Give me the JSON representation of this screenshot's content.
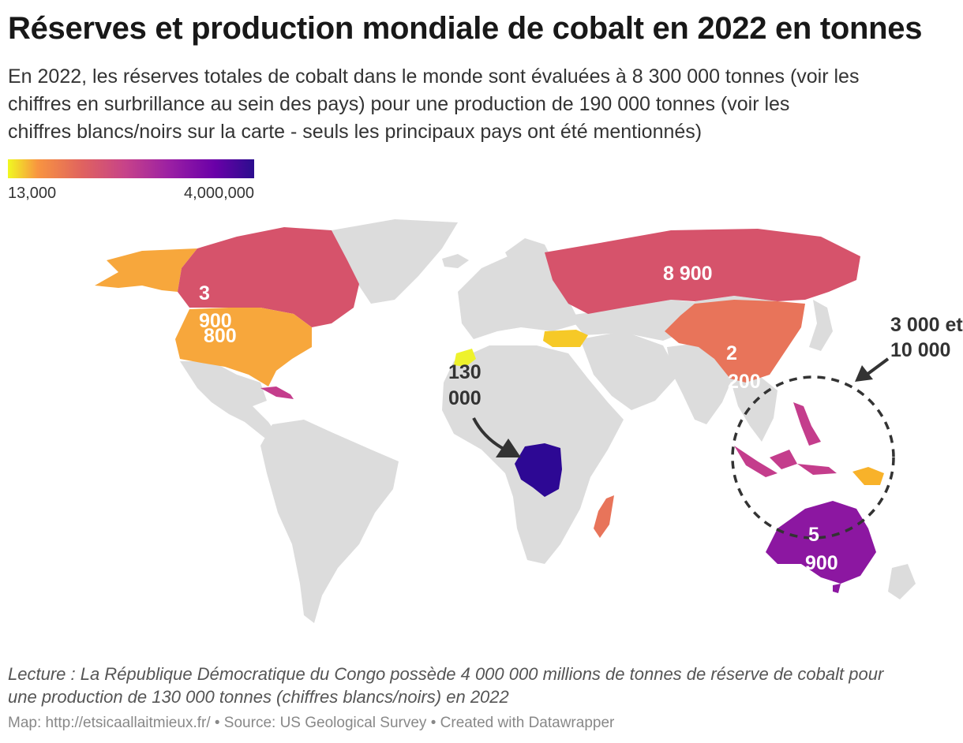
{
  "title": "Réserves et production mondiale de cobalt en 2022 en tonnes",
  "subtitle_lines": [
    "En 2022, les réserves totales de cobalt dans le monde sont évaluées à 8 300 000 tonnes (voir les",
    "chiffres en surbrillance au sein des pays) pour une production de 190 000 tonnes (voir les",
    "chiffres blancs/noirs sur la carte - seuls les principaux pays ont été mentionnés)"
  ],
  "legend": {
    "min_label": "13,000",
    "max_label": "4,000,000",
    "min_value": 13000,
    "max_value": 4000000,
    "gradient_colors": [
      "#f0f921",
      "#f89540",
      "#e0635f",
      "#c6428a",
      "#9a1fa4",
      "#6a00a8",
      "#2b0d8e"
    ]
  },
  "map": {
    "base_color": "#dcdcdc",
    "countries": [
      {
        "name": "Canada",
        "color": "#d6536b"
      },
      {
        "name": "États-Unis",
        "color": "#f7a73c"
      },
      {
        "name": "Alaska",
        "color": "#f7a73c"
      },
      {
        "name": "Russie",
        "color": "#d6536b"
      },
      {
        "name": "Chine",
        "color": "#e8745a"
      },
      {
        "name": "Turquie",
        "color": "#f6c927"
      },
      {
        "name": "Maroc",
        "color": "#eef22c"
      },
      {
        "name": "Cuba",
        "color": "#c43d8c"
      },
      {
        "name": "RD Congo",
        "color": "#2d0894"
      },
      {
        "name": "Madagascar",
        "color": "#e8745a"
      },
      {
        "name": "Australie",
        "color": "#8c17a1"
      },
      {
        "name": "Indonésie",
        "color": "#c43d8c"
      },
      {
        "name": "Philippines",
        "color": "#c43d8c"
      },
      {
        "name": "Papouasie-Nouvelle-Guinée",
        "color": "#f8b22a"
      }
    ],
    "production_labels": [
      {
        "id": "usa-canada",
        "lines": [
          "3",
          "900",
          "800"
        ],
        "color": "#ffffff"
      },
      {
        "id": "russia",
        "lines": [
          "8 900"
        ],
        "color": "#ffffff"
      },
      {
        "id": "china",
        "lines": [
          "2",
          "200"
        ],
        "color": "#ffffff"
      },
      {
        "id": "drc",
        "lines": [
          "130",
          "000"
        ],
        "color": "#333333"
      },
      {
        "id": "australia",
        "lines": [
          "5",
          "900"
        ],
        "color": "#ffffff"
      },
      {
        "id": "southeast-asia",
        "lines": [
          "3 000 et",
          "10 000"
        ],
        "color": "#333333"
      }
    ]
  },
  "footnote_lines": [
    "Lecture : La République Démocratique du Congo possède 4 000 000 millions de tonnes de réserve de cobalt pour",
    "une production de 130 000 tonnes (chiffres blancs/noirs) en 2022"
  ],
  "source": "Map: http://etsicaallaitmieux.fr/ • Source: US Geological Survey • Created with Datawrapper"
}
